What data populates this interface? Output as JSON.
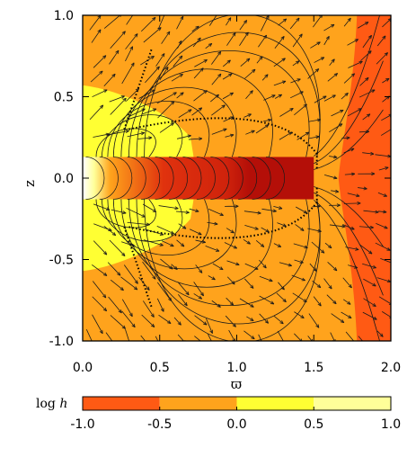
{
  "chart_data": {
    "type": "heatmap",
    "description_kind": "filled contour map with field lines and velocity vectors",
    "xlabel": "ϖ",
    "ylabel": "z",
    "xlim": [
      0.0,
      2.0
    ],
    "ylim": [
      -1.0,
      1.0
    ],
    "x_ticks": [
      "0.0",
      "0.5",
      "1.0",
      "1.5",
      "2.0"
    ],
    "y_ticks": [
      "1.0",
      "0.5",
      "0.0",
      "-0.5",
      "-1.0"
    ],
    "x_tick_values": [
      0.0,
      0.5,
      1.0,
      1.5,
      2.0
    ],
    "y_tick_values": [
      1.0,
      0.5,
      0.0,
      -0.5,
      -1.0
    ],
    "disk": {
      "inner_radius": 0.0,
      "outer_radius": 1.5,
      "half_thickness": 0.13
    },
    "colorbar": {
      "label": "log",
      "label_var": "h",
      "ticks": [
        "-1.0",
        "-0.5",
        "0.0",
        "0.5",
        "1.0"
      ],
      "tick_values": [
        -1.0,
        -0.5,
        0.0,
        0.5,
        1.0
      ],
      "levels": [
        {
          "range": [
            -1.0,
            -0.5
          ],
          "color": "#ff5a14"
        },
        {
          "range": [
            -0.5,
            0.0
          ],
          "color": "#ffa31c"
        },
        {
          "range": [
            0.0,
            0.5
          ],
          "color": "#ffff33"
        },
        {
          "range": [
            0.5,
            1.0
          ],
          "color": "#ffff99"
        }
      ]
    },
    "extra_colors": {
      "deep": "#b40f08",
      "disk_mid": "#e0320e",
      "line": "#1a1a1a",
      "dots": "#000000"
    }
  }
}
